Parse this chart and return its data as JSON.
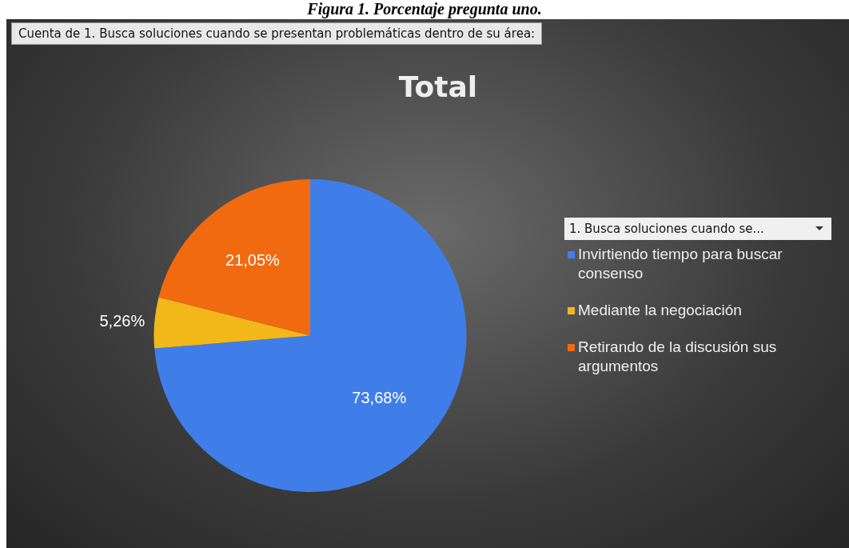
{
  "chart_data": {
    "type": "pie",
    "title": "Total",
    "legend_title": "1. Busca soluciones cuando se...",
    "legend": "right",
    "categories": [
      "Invirtiendo tiempo para buscar consenso",
      "Mediante la negociación",
      "Retirando de la discusión sus argumentos"
    ],
    "values": [
      73.68,
      5.26,
      21.05
    ],
    "colors": [
      "#3f7ee8",
      "#f2b81a",
      "#f26a10"
    ],
    "value_labels": [
      "73,68%",
      "5,26%",
      "21,05%"
    ],
    "annotations": [
      "Figura 1. Porcentaje pregunta uno.",
      "Cuenta de 1. Busca soluciones cuando se presentan problemáticas dentro de su área:"
    ]
  }
}
